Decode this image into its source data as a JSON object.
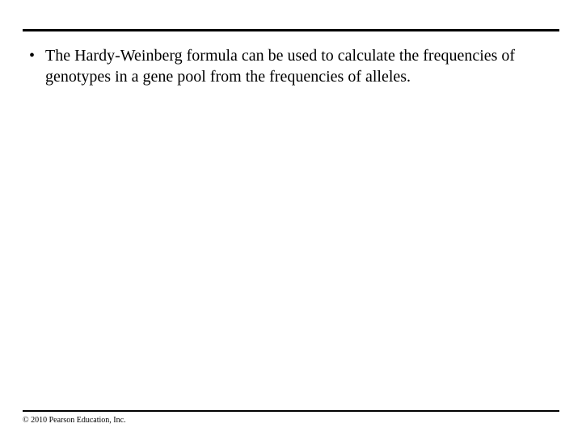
{
  "layout": {
    "rule_color": "#000000",
    "background_color": "#ffffff"
  },
  "content": {
    "bullets": [
      {
        "marker": "•",
        "text": "The Hardy-Weinberg formula can be used to calculate the frequencies of genotypes in a gene pool from the frequencies of alleles."
      }
    ]
  },
  "footer": {
    "copyright": "© 2010 Pearson Education, Inc."
  }
}
